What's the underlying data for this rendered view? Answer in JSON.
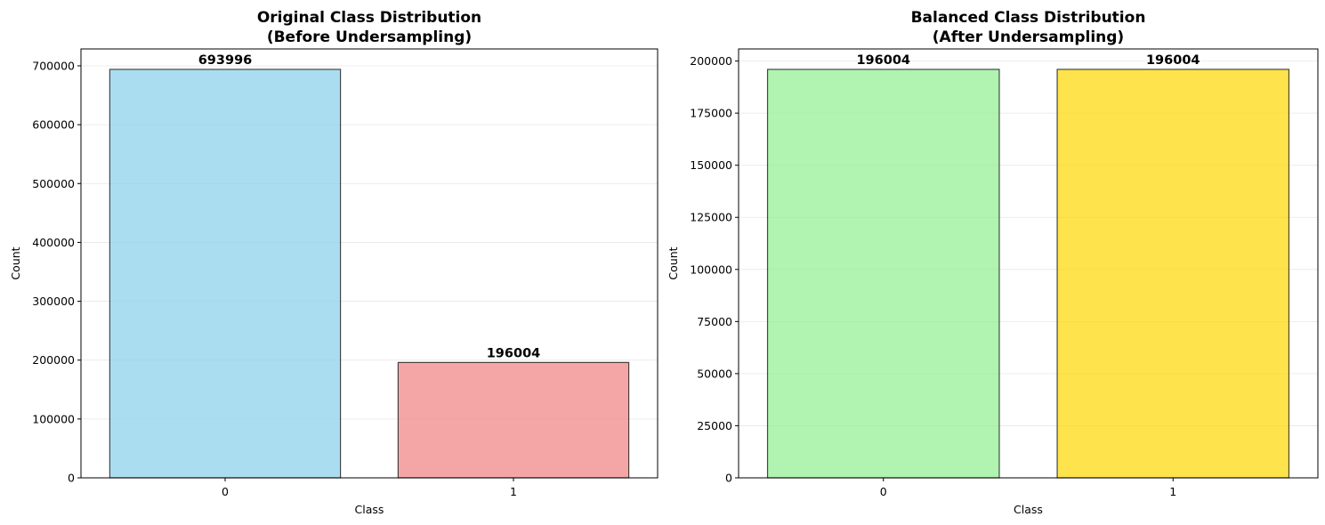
{
  "chart_data": [
    {
      "type": "bar",
      "title": "Original Class Distribution",
      "subtitle": "(Before Undersampling)",
      "xlabel": "Class",
      "ylabel": "Count",
      "categories": [
        "0",
        "1"
      ],
      "values": [
        693996,
        196004
      ],
      "data_labels": [
        "693996",
        "196004"
      ],
      "bar_colors": [
        "#87ceeb",
        "#f08080"
      ],
      "ylim": [
        0,
        728696
      ],
      "yticks": [
        0,
        100000,
        200000,
        300000,
        400000,
        500000,
        600000,
        700000
      ],
      "ytick_labels": [
        "0",
        "100000",
        "200000",
        "300000",
        "400000",
        "500000",
        "600000",
        "700000"
      ],
      "grid": "y",
      "legend": "none"
    },
    {
      "type": "bar",
      "title": "Balanced Class Distribution",
      "subtitle": "(After Undersampling)",
      "xlabel": "Class",
      "ylabel": "Count",
      "categories": [
        "0",
        "1"
      ],
      "values": [
        196004,
        196004
      ],
      "data_labels": [
        "196004",
        "196004"
      ],
      "bar_colors": [
        "#90ee90",
        "#ffd700"
      ],
      "ylim": [
        0,
        205804
      ],
      "yticks": [
        0,
        25000,
        50000,
        75000,
        100000,
        125000,
        150000,
        175000,
        200000
      ],
      "ytick_labels": [
        "0",
        "25000",
        "50000",
        "75000",
        "100000",
        "125000",
        "150000",
        "175000",
        "200000"
      ],
      "grid": "y",
      "legend": "none"
    }
  ]
}
